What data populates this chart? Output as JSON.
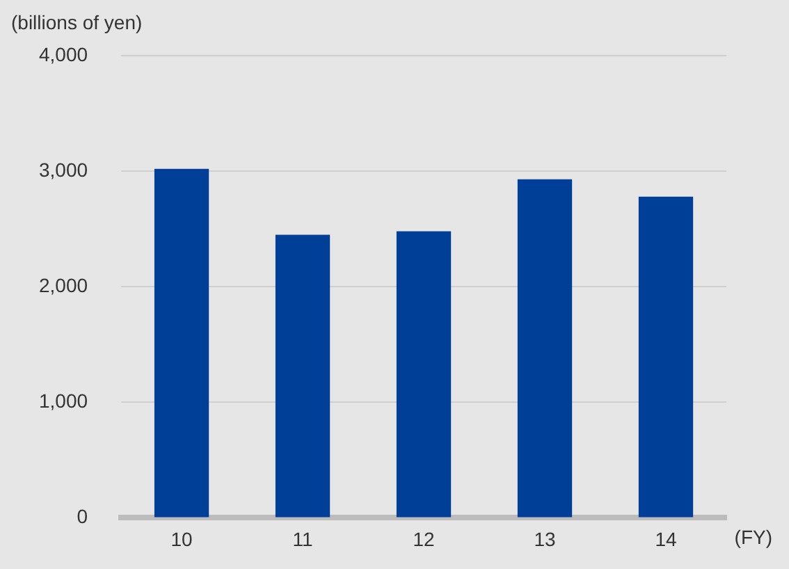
{
  "chart_data": {
    "type": "bar",
    "ylabel": "(billions of yen)",
    "xlabel": "(FY)",
    "categories": [
      "10",
      "11",
      "12",
      "13",
      "14"
    ],
    "series": [
      {
        "color": "#003f98",
        "values": [
          3020,
          2450,
          2480,
          2930,
          2780
        ]
      }
    ],
    "ylim": [
      0,
      4000
    ],
    "yticks": [
      0,
      {
        "value": 1000,
        "label": "1,000"
      },
      {
        "value": 2000,
        "label": "2,000"
      },
      {
        "value": 3000,
        "label": "3,000"
      },
      {
        "value": 4000,
        "label": "4,000"
      }
    ],
    "grid": "y",
    "legend": false
  }
}
